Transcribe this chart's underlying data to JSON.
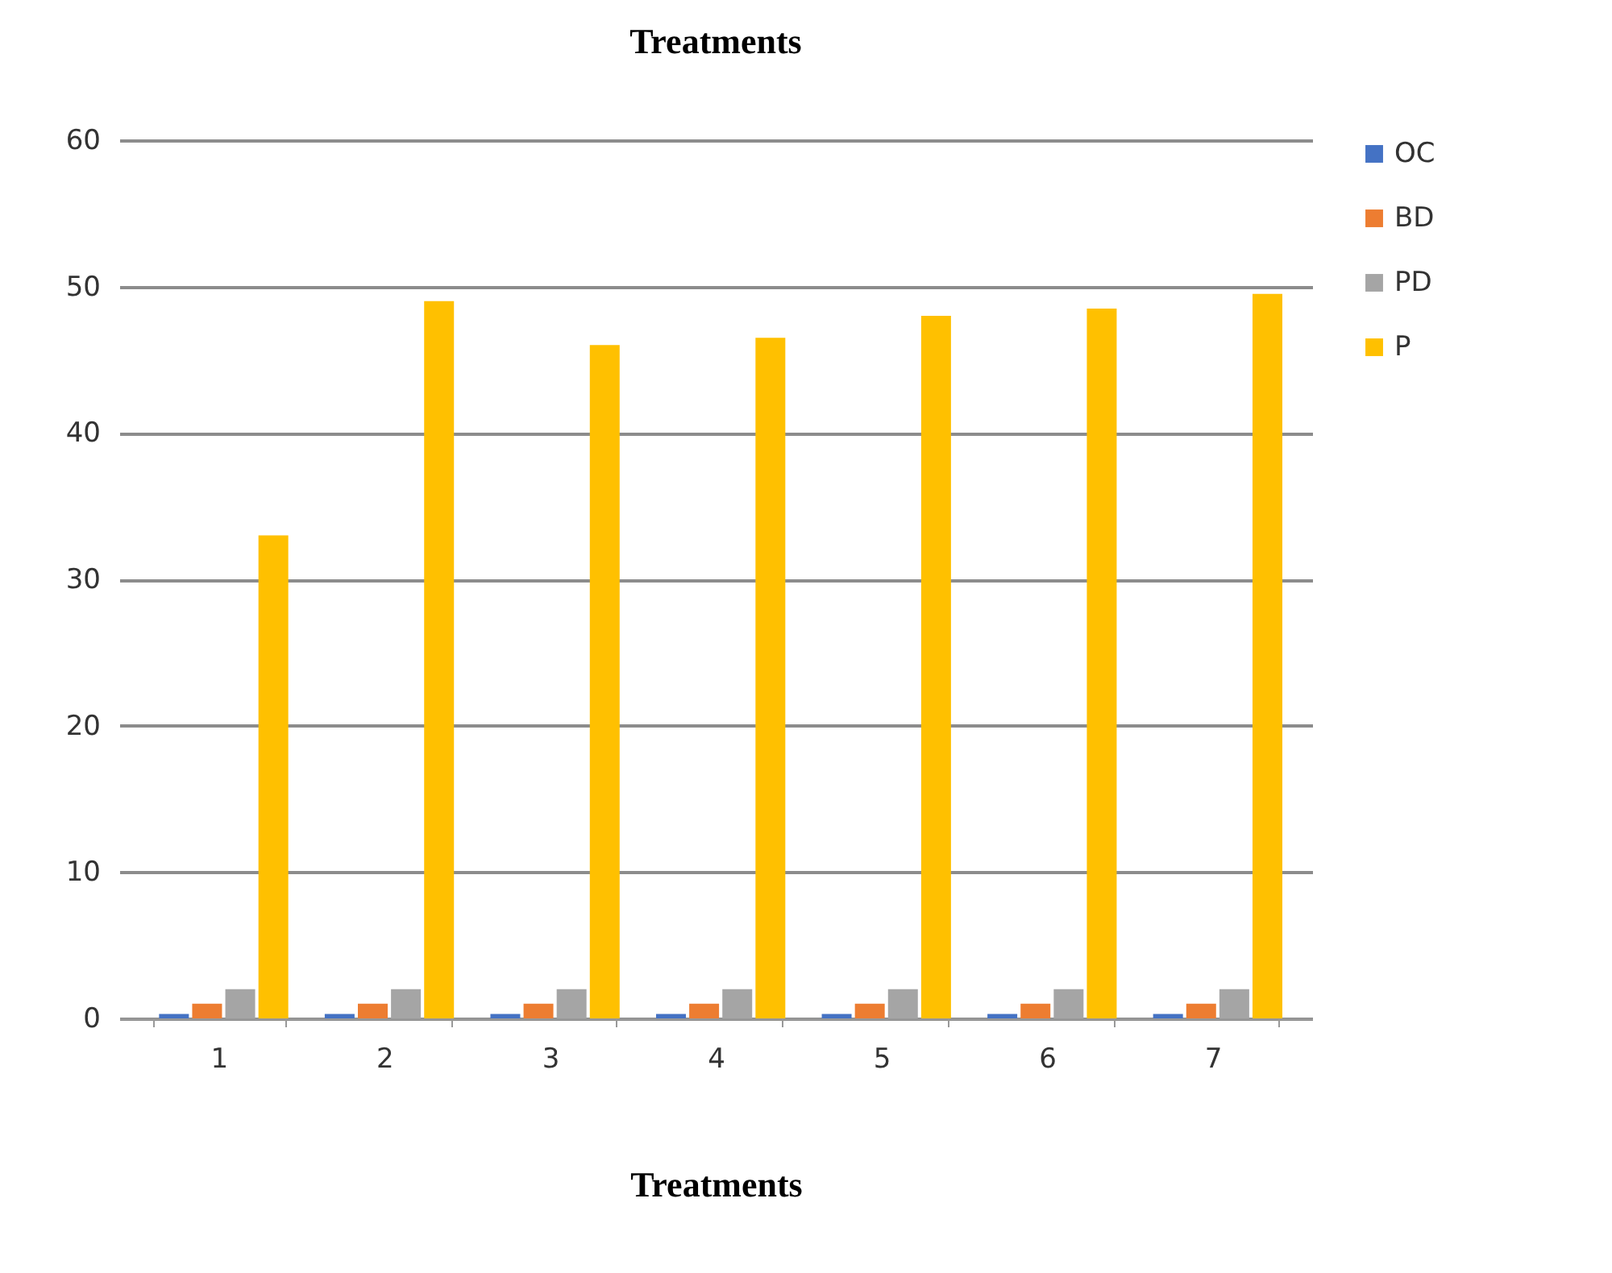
{
  "chart_data": {
    "type": "bar",
    "title": "Treatments",
    "xlabel": "Treatments",
    "categories": [
      "1",
      "2",
      "3",
      "4",
      "5",
      "6",
      "7"
    ],
    "series": [
      {
        "name": "OC",
        "color": "#4472c4",
        "values": [
          0.3,
          0.3,
          0.3,
          0.3,
          0.3,
          0.3,
          0.3
        ]
      },
      {
        "name": "BD",
        "color": "#ed7d31",
        "values": [
          1,
          1,
          1,
          1,
          1,
          1,
          1
        ]
      },
      {
        "name": "PD",
        "color": "#a5a5a5",
        "values": [
          2,
          2,
          2,
          2,
          2,
          2,
          2
        ]
      },
      {
        "name": "P",
        "color": "#ffc000",
        "values": [
          33,
          49,
          46,
          46.5,
          48,
          48.5,
          49.5
        ]
      }
    ],
    "ylim": [
      0,
      60
    ],
    "yticks": [
      0,
      10,
      20,
      30,
      40,
      50,
      60
    ],
    "grid": "y",
    "legend": "right"
  }
}
